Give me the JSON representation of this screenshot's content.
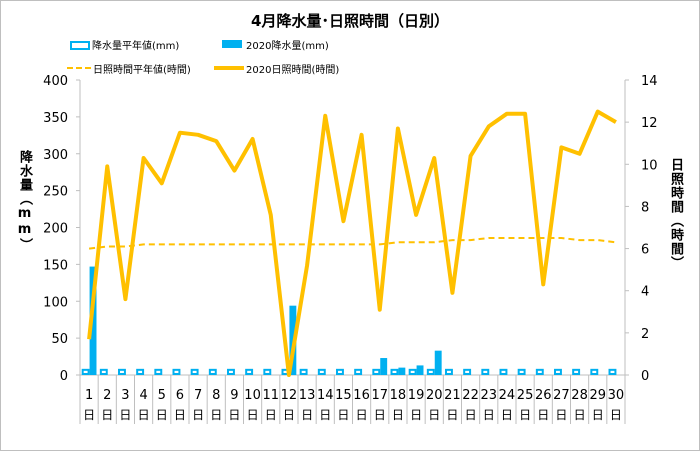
{
  "chart_data": {
    "type": "bar+line",
    "title": "4月降水量･日照時間（日別）",
    "categories": [
      "1",
      "2",
      "3",
      "4",
      "5",
      "6",
      "7",
      "8",
      "9",
      "10",
      "11",
      "12",
      "13",
      "14",
      "15",
      "16",
      "17",
      "18",
      "19",
      "20",
      "21",
      "22",
      "23",
      "24",
      "25",
      "26",
      "27",
      "28",
      "29",
      "30"
    ],
    "day_suffix": "日",
    "legend": [
      {
        "name": "降水量平年値(mm)",
        "style": "hollow-bar",
        "color": "#00b0f0"
      },
      {
        "name": "2020降水量(mm)",
        "style": "bar",
        "color": "#00b0f0"
      },
      {
        "name": "日照時間平年値(時間)",
        "style": "dashed-line",
        "color": "#ffc000"
      },
      {
        "name": "2020日照時間(時間)",
        "style": "line",
        "color": "#ffc000"
      }
    ],
    "series": [
      {
        "name": "降水量平年値(mm)",
        "axis": "left",
        "type": "bar",
        "values": [
          7,
          7,
          7,
          7,
          7,
          7,
          7,
          7,
          7,
          7,
          7,
          7,
          7,
          7,
          7,
          7,
          7,
          7,
          7,
          7,
          7,
          7,
          7,
          7,
          7,
          7,
          7,
          7,
          7,
          7
        ]
      },
      {
        "name": "2020降水量(mm)",
        "axis": "left",
        "type": "bar",
        "values": [
          147,
          0,
          0,
          0,
          0,
          0,
          0,
          0,
          0,
          0,
          0,
          94,
          0,
          0,
          0,
          0,
          23,
          10,
          13,
          33,
          0,
          0,
          0,
          0,
          0,
          0,
          0,
          0,
          0,
          0
        ]
      },
      {
        "name": "日照時間平年値(時間)",
        "axis": "right",
        "type": "line",
        "values": [
          6.0,
          6.1,
          6.1,
          6.2,
          6.2,
          6.2,
          6.2,
          6.2,
          6.2,
          6.2,
          6.2,
          6.2,
          6.2,
          6.2,
          6.2,
          6.2,
          6.2,
          6.3,
          6.3,
          6.3,
          6.4,
          6.4,
          6.5,
          6.5,
          6.5,
          6.5,
          6.5,
          6.4,
          6.4,
          6.3
        ]
      },
      {
        "name": "2020日照時間(時間)",
        "axis": "right",
        "type": "line",
        "values": [
          1.7,
          9.9,
          3.6,
          10.3,
          9.1,
          11.5,
          11.4,
          11.1,
          9.7,
          11.2,
          7.6,
          0.0,
          5.2,
          12.3,
          7.3,
          11.4,
          3.1,
          11.7,
          7.6,
          10.3,
          3.9,
          10.4,
          11.8,
          12.4,
          12.4,
          4.3,
          10.8,
          10.5,
          12.5,
          12.0
        ]
      }
    ],
    "ylabel": "降水量（mm）",
    "y2label": "日照時間（時間）",
    "ylim": [
      0,
      400
    ],
    "y2lim": [
      0,
      14
    ],
    "yticks": [
      0,
      50,
      100,
      150,
      200,
      250,
      300,
      350,
      400
    ],
    "y2ticks": [
      0,
      2,
      4,
      6,
      8,
      10,
      12,
      14
    ],
    "grid": false,
    "legend_position": "top"
  }
}
